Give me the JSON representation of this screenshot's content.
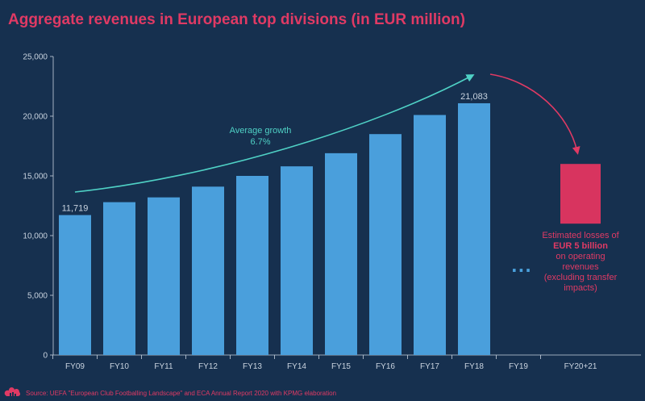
{
  "chart_data": {
    "type": "bar",
    "title": "Aggregate revenues in European top divisions (in EUR million)",
    "categories": [
      "FY09",
      "FY10",
      "FY11",
      "FY12",
      "FY13",
      "FY14",
      "FY15",
      "FY16",
      "FY17",
      "FY18",
      "FY19",
      "FY20+21"
    ],
    "values": [
      11719,
      12800,
      13200,
      14100,
      15000,
      15800,
      16900,
      18500,
      20100,
      21083,
      null,
      null
    ],
    "data_labels": [
      {
        "category": "FY09",
        "text": "11,719"
      },
      {
        "category": "FY18",
        "text": "21,083"
      }
    ],
    "ylim": [
      0,
      25000
    ],
    "yticks": [
      "0",
      "5,000",
      "10,000",
      "15,000",
      "20,000",
      "25,000"
    ],
    "ytick_values": [
      0,
      5000,
      10000,
      15000,
      20000,
      25000
    ],
    "xlabel": "",
    "ylabel": "",
    "growth_annotation": {
      "line1": "Average growth",
      "line2": "6.7%"
    },
    "estimated_loss": {
      "category": "FY20+21",
      "range": [
        11000,
        16000
      ],
      "text_before": "Estimated losses of",
      "text_bold": "EUR 5 billion",
      "text_after": [
        "on operating",
        "revenues",
        "(excluding transfer",
        "impacts)"
      ]
    },
    "ellipsis_text": "...",
    "colors": {
      "bar": "#4a9fdc",
      "loss": "#d8345f",
      "growth_arrow": "#4fd1c5",
      "loss_arrow": "#e03a64",
      "axis": "#c9d3df",
      "background": "#16304f"
    }
  },
  "footer": {
    "source": "Source: UEFA \"European Club Footballing Landscape\" and ECA Annual Report 2020 with KPMG elaboration",
    "icon": "cloud-icon"
  }
}
